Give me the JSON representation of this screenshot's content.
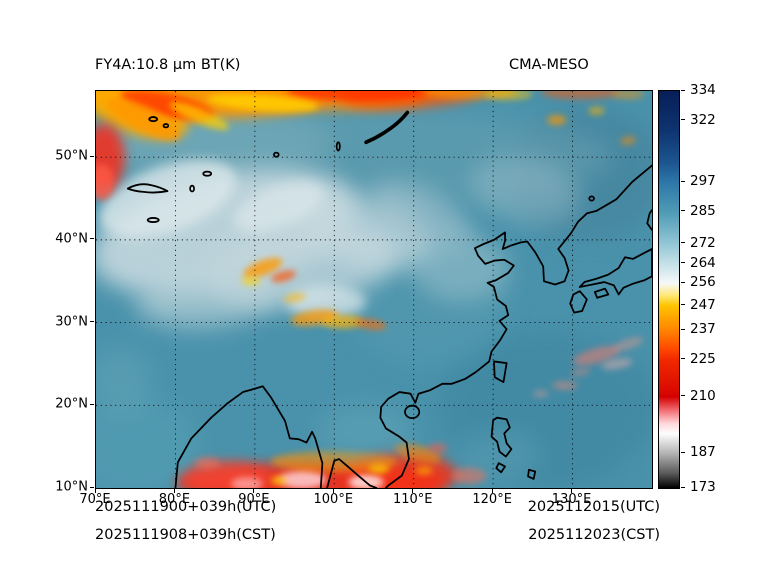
{
  "header": {
    "left_title": "FY4A:10.8 μm BT(K)",
    "right_title": "CMA-MESO"
  },
  "footer": {
    "init_utc": "2025111900+039h(UTC)",
    "init_cst": "2025111908+039h(CST)",
    "valid_utc": "2025112015(UTC)",
    "valid_cst": "2025112023(CST)"
  },
  "chart_data": {
    "type": "heatmap",
    "title": "FY4A:10.8 μm BT(K)",
    "model_label": "CMA-MESO",
    "variable": "FY4A 10.8 μm brightness temperature",
    "unit": "K",
    "lon_range": [
      70,
      140
    ],
    "lat_range": [
      10,
      58
    ],
    "x_axis": {
      "ticks": [
        {
          "value": 70,
          "label": "70°E"
        },
        {
          "value": 80,
          "label": "80°E"
        },
        {
          "value": 90,
          "label": "90°E"
        },
        {
          "value": 100,
          "label": "100°E"
        },
        {
          "value": 110,
          "label": "110°E"
        },
        {
          "value": 120,
          "label": "120°E"
        },
        {
          "value": 130,
          "label": "130°E"
        }
      ]
    },
    "y_axis": {
      "ticks": [
        {
          "value": 10,
          "label": "10°N"
        },
        {
          "value": 20,
          "label": "20°N"
        },
        {
          "value": 30,
          "label": "30°N"
        },
        {
          "value": 40,
          "label": "40°N"
        },
        {
          "value": 50,
          "label": "50°N"
        }
      ]
    },
    "grid": {
      "lon_lines": [
        80,
        90,
        100,
        110,
        120,
        130
      ],
      "lat_lines": [
        20,
        30,
        40,
        50
      ],
      "style": "dotted"
    },
    "colorbar": {
      "min": 173,
      "max": 334,
      "tick_values": [
        334,
        322,
        297,
        285,
        272,
        264,
        256,
        247,
        237,
        225,
        210,
        187,
        173
      ],
      "stops": [
        [
          334,
          "#071e58"
        ],
        [
          318,
          "#0e3470"
        ],
        [
          305,
          "#1c5590"
        ],
        [
          297,
          "#2d77a8"
        ],
        [
          285,
          "#4e9ab5"
        ],
        [
          272,
          "#93c6d5"
        ],
        [
          264,
          "#c5e0e8"
        ],
        [
          256,
          "#f6f8f8"
        ],
        [
          251,
          "#ffe873"
        ],
        [
          247,
          "#ffc400"
        ],
        [
          237,
          "#ff8400"
        ],
        [
          230,
          "#ff4d00"
        ],
        [
          225,
          "#f22800"
        ],
        [
          212,
          "#d90900"
        ],
        [
          210,
          "#d40000"
        ],
        [
          204,
          "#f4777e"
        ],
        [
          199,
          "#ffdadd"
        ],
        [
          195,
          "#fdfdfd"
        ],
        [
          187,
          "#b3b3b3"
        ],
        [
          179,
          "#5a5a5a"
        ],
        [
          173,
          "#000000"
        ]
      ]
    },
    "base_color": "#4a92ab",
    "cloud_regions": [
      [
        127,
        20,
        14,
        9,
        0,
        "#3f87a2",
        0.7,
        3
      ],
      [
        132,
        48,
        10,
        8,
        0,
        "#447f98",
        0.5,
        3
      ],
      [
        75,
        15,
        8,
        6,
        0,
        "#55a0b4",
        0.6,
        3
      ],
      [
        112,
        33,
        10,
        8,
        0,
        "#569bb0",
        0.5,
        3
      ],
      [
        128,
        13,
        8,
        3,
        0,
        "#4389a3",
        0.6,
        3
      ],
      [
        100,
        50,
        35,
        6,
        0,
        "#6aa3b2",
        0.5,
        3
      ],
      [
        85,
        52,
        15,
        4,
        0,
        "#7fb0bc",
        0.5,
        3
      ],
      [
        86,
        41,
        17,
        7,
        -12,
        "#cddde2",
        0.85,
        3
      ],
      [
        79,
        45,
        9,
        4,
        -18,
        "#dce8eb",
        0.8,
        2
      ],
      [
        96,
        37,
        12,
        5,
        -8,
        "#c2d6dc",
        0.8,
        3
      ],
      [
        104,
        41,
        9,
        4,
        15,
        "#c8dae0",
        0.7,
        3
      ],
      [
        111,
        43,
        7,
        3,
        25,
        "#b4cdd5",
        0.55,
        3
      ],
      [
        84,
        33,
        9,
        3.5,
        -5,
        "#bdd4da",
        0.65,
        3
      ],
      [
        99,
        32.5,
        5,
        2,
        0,
        "#dfeaed",
        0.7,
        2
      ],
      [
        116,
        36.5,
        6,
        4,
        0,
        "#a3c6cf",
        0.5,
        3
      ],
      [
        124,
        46,
        7,
        4,
        10,
        "#9dc0ca",
        0.45,
        3
      ],
      [
        93,
        44,
        6,
        2.5,
        -20,
        "#e2ecee",
        0.6,
        2
      ],
      [
        84,
        57.3,
        15,
        2.6,
        0,
        "#ff9800",
        0.95,
        2
      ],
      [
        99,
        57.7,
        13,
        2,
        0,
        "#ff8c00",
        0.9,
        2
      ],
      [
        110,
        57.6,
        9,
        1.6,
        -4,
        "#ff5500",
        0.85,
        2
      ],
      [
        75,
        55.8,
        7,
        3,
        18,
        "#ffab00",
        0.9,
        2
      ],
      [
        79,
        56.3,
        6,
        1.4,
        12,
        "#ff3000",
        0.8,
        1
      ],
      [
        103,
        57.9,
        9,
        1.1,
        0,
        "#ff2d00",
        0.8,
        1
      ],
      [
        91,
        56.6,
        7,
        1,
        4,
        "#ffd400",
        0.8,
        1
      ],
      [
        83,
        55,
        4,
        0.9,
        22,
        "#ffd400",
        0.7,
        1
      ],
      [
        71,
        50,
        2.6,
        4,
        0,
        "#ef3022",
        0.9,
        2
      ],
      [
        70.7,
        47,
        1.6,
        2.2,
        0,
        "#ff5a44",
        0.8,
        1
      ],
      [
        76,
        54.6,
        5,
        1.5,
        25,
        "#ff9800",
        0.85,
        1
      ],
      [
        117,
        57.9,
        6,
        0.9,
        0,
        "#ff9800",
        0.6,
        1
      ],
      [
        122,
        57.6,
        3,
        0.7,
        0,
        "#ffc400",
        0.5,
        1
      ],
      [
        131,
        57.8,
        5,
        0.8,
        0,
        "#ff5500",
        0.5,
        1
      ],
      [
        137,
        57.6,
        2,
        0.6,
        0,
        "#ff9800",
        0.45,
        1
      ],
      [
        128,
        54.5,
        1.2,
        0.6,
        0,
        "#ff9800",
        0.7,
        1
      ],
      [
        133,
        55.6,
        1,
        0.5,
        0,
        "#ffb300",
        0.6,
        1
      ],
      [
        137,
        52,
        1,
        0.5,
        -10,
        "#ff8c00",
        0.55,
        1
      ],
      [
        91,
        36.6,
        2.6,
        0.9,
        -20,
        "#ff9800",
        0.8,
        1
      ],
      [
        93.6,
        35.6,
        1.6,
        0.6,
        -15,
        "#ff5000",
        0.7,
        1
      ],
      [
        89.5,
        35,
        1.2,
        0.5,
        0,
        "#ffd400",
        0.65,
        1
      ],
      [
        97.5,
        30.6,
        3,
        0.9,
        -8,
        "#ff9800",
        0.75,
        1
      ],
      [
        101,
        30.1,
        2.6,
        0.8,
        0,
        "#ffb300",
        0.7,
        1
      ],
      [
        104.6,
        29.8,
        2,
        0.6,
        8,
        "#ff6a00",
        0.65,
        1
      ],
      [
        95,
        33,
        1.4,
        0.5,
        -10,
        "#ffb300",
        0.6,
        1
      ],
      [
        97,
        10.6,
        17,
        2.4,
        0,
        "#f52c18",
        0.9,
        2
      ],
      [
        108.5,
        11.6,
        7,
        2.6,
        0,
        "#f53018",
        0.85,
        2
      ],
      [
        86.5,
        11.2,
        5.5,
        2,
        0,
        "#f54530",
        0.8,
        2
      ],
      [
        96,
        11,
        3,
        1.1,
        0,
        "#ffdadd",
        0.8,
        1
      ],
      [
        104,
        10.7,
        2.2,
        0.9,
        0,
        "#ffffff",
        0.75,
        1
      ],
      [
        89,
        10.5,
        2,
        0.8,
        0,
        "#ffc9ce",
        0.6,
        1
      ],
      [
        105.6,
        12.4,
        1.3,
        0.6,
        0,
        "#ffd400",
        0.85,
        1
      ],
      [
        93,
        10.9,
        1,
        0.5,
        0,
        "#ffc800",
        0.8,
        1
      ],
      [
        111.3,
        12.1,
        1.1,
        0.5,
        0,
        "#ffaa00",
        0.7,
        1
      ],
      [
        100,
        13.2,
        8,
        1.3,
        0,
        "#ff9800",
        0.55,
        1
      ],
      [
        110.5,
        14.2,
        3,
        1,
        15,
        "#ff8c00",
        0.55,
        1
      ],
      [
        113,
        14.8,
        1.2,
        0.6,
        0,
        "#ff5a44",
        0.55,
        1
      ],
      [
        84,
        13,
        1.6,
        0.7,
        0,
        "#ff7055",
        0.55,
        1
      ],
      [
        117,
        11.5,
        2.2,
        1,
        0,
        "#ff6a50",
        0.6,
        1
      ],
      [
        133,
        26,
        3,
        0.9,
        -15,
        "#ff7a68",
        0.5,
        1
      ],
      [
        135.6,
        25,
        2,
        0.6,
        -10,
        "#ffb4ae",
        0.45,
        1
      ],
      [
        129,
        22.4,
        1.6,
        0.5,
        0,
        "#ff8a74",
        0.45,
        1
      ],
      [
        137,
        27.4,
        2,
        0.6,
        -18,
        "#ff9a86",
        0.4,
        1
      ],
      [
        126,
        21.4,
        1,
        0.4,
        0,
        "#ffa392",
        0.4,
        1
      ],
      [
        131,
        24,
        1.2,
        0.4,
        -10,
        "#ff8a74",
        0.4,
        1
      ],
      [
        104,
        17,
        6,
        3,
        0,
        "#63a6b8",
        0.5,
        3
      ],
      [
        121,
        14,
        5,
        3,
        0,
        "#5fa2b5",
        0.45,
        3
      ],
      [
        73,
        23,
        4,
        4,
        0,
        "#64a4b6",
        0.5,
        3
      ]
    ]
  }
}
